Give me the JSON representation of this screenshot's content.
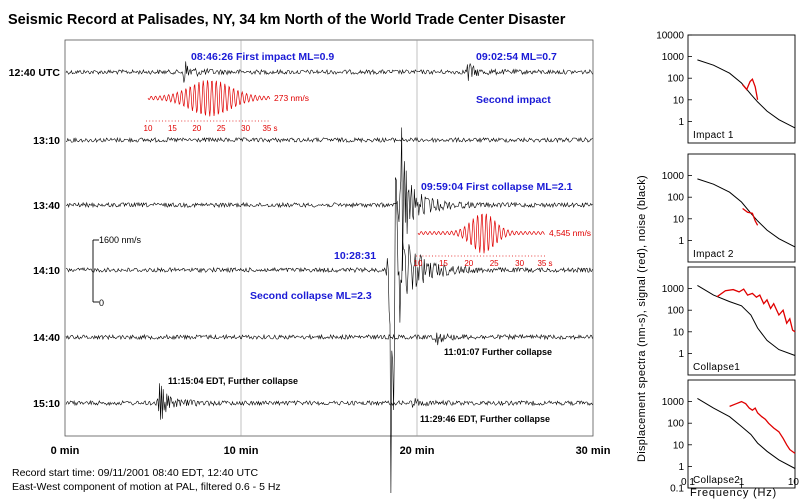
{
  "title": "Seismic Record at Palisades, NY, 34 km North of the World Trade Center Disaster",
  "colors": {
    "trace": "#000000",
    "event_label": "#1a1ad6",
    "signal": "#e00000",
    "noise": "#000000"
  },
  "footer": {
    "line1": "Record start time: 09/11/2001 08:40 EDT, 12:40 UTC",
    "line2": "East-West component of motion at PAL, filtered 0.6 - 5 Hz"
  },
  "chart_data": [
    {
      "type": "line",
      "name": "seismogram",
      "x_ticks": [
        "0 min",
        "10 min",
        "20 min",
        "30 min"
      ],
      "xlim": [
        0,
        30
      ],
      "rows": [
        "12:40 UTC",
        "13:10",
        "13:40",
        "14:10",
        "14:40",
        "15:10"
      ],
      "scale_bar": {
        "label": "1600 nm/s",
        "zero_label": "0"
      },
      "events": [
        {
          "row": 0,
          "minute": 6.8,
          "amp": 12,
          "label": "08:46:26 First impact ML=0.9",
          "color": "blue"
        },
        {
          "row": 0,
          "minute": 22.9,
          "amp": 9,
          "label": "09:02:54 ML=0.7",
          "color": "blue"
        },
        {
          "row": 0,
          "minute": 22.9,
          "amp": 0,
          "label": "Second impact",
          "color": "blue"
        },
        {
          "row": 2,
          "minute": 19.1,
          "amp": 90,
          "label": "09:59:04 First collapse ML=2.1",
          "color": "blue"
        },
        {
          "row": 3,
          "minute": 18.5,
          "amp": 210,
          "label": "10:28:31",
          "color": "blue"
        },
        {
          "row": 3,
          "minute": 18.5,
          "amp": 0,
          "label": "Second collapse ML=2.3",
          "color": "blue"
        },
        {
          "row": 4,
          "minute": 21.1,
          "amp": 7,
          "label": "11:01:07 Further collapse",
          "color": "black"
        },
        {
          "row": 5,
          "minute": 5.4,
          "amp": 20,
          "label": "11:15:04 EDT, Further collapse",
          "color": "black"
        },
        {
          "row": 5,
          "minute": 19.8,
          "amp": 4,
          "label": "11:29:46 EDT, Further collapse",
          "color": "black"
        }
      ],
      "insets": [
        {
          "peak_label": "273 nm/s",
          "x_ticks": [
            "10",
            "15",
            "20",
            "25",
            "30",
            "35 s"
          ]
        },
        {
          "peak_label": "4,545 nm/s",
          "x_ticks": [
            "10",
            "15",
            "20",
            "25",
            "30",
            "35 s"
          ]
        }
      ]
    },
    {
      "type": "line",
      "name": "spectra",
      "ylabel": "Displacement spectra (nm-s), signal (red), noise (black)",
      "xlabel": "Frequency (Hz)",
      "x_scale": "log",
      "y_scale": "log",
      "xlim": [
        0.1,
        10
      ],
      "ylim": [
        0.1,
        10000
      ],
      "x_ticks": [
        "0.1",
        "1",
        "10"
      ],
      "y_ticks": [
        "0.1",
        "1",
        "10",
        "100",
        "1000",
        "10000"
      ],
      "panels": [
        {
          "label": "Impact 1",
          "noise": {
            "x": [
              0.15,
              0.3,
              0.6,
              1.0,
              1.5,
              2,
              3,
              5,
              10
            ],
            "y": [
              700,
              400,
              170,
              60,
              18,
              8,
              3,
              1.2,
              0.5
            ]
          },
          "signal": {
            "x": [
              1.05,
              1.25,
              1.45,
              1.6,
              1.8,
              2.0
            ],
            "y": [
              50,
              30,
              70,
              90,
              40,
              10
            ]
          }
        },
        {
          "label": "Impact 2",
          "noise": {
            "x": [
              0.15,
              0.3,
              0.6,
              1.0,
              1.5,
              2,
              3,
              5,
              10
            ],
            "y": [
              700,
              400,
              170,
              60,
              18,
              8,
              3,
              1.2,
              0.5
            ]
          },
          "signal": {
            "x": [
              1.05,
              1.3,
              1.6,
              1.8,
              2.0
            ],
            "y": [
              30,
              20,
              18,
              8,
              5
            ]
          }
        },
        {
          "label": "Collapse1",
          "noise": {
            "x": [
              0.15,
              0.3,
              0.6,
              1.0,
              1.5,
              2,
              3,
              5,
              10
            ],
            "y": [
              1400,
              500,
              250,
              160,
              60,
              15,
              4,
              1.5,
              0.8
            ]
          },
          "signal": {
            "x": [
              0.35,
              0.5,
              0.7,
              0.9,
              1.1,
              1.3,
              1.6,
              1.9,
              2.2,
              2.6,
              3.0,
              3.5,
              4.0,
              5.0,
              6.0,
              7.0,
              8.0,
              9.0,
              10.0
            ],
            "y": [
              420,
              800,
              900,
              700,
              950,
              500,
              600,
              400,
              500,
              200,
              300,
              120,
              200,
              60,
              100,
              25,
              40,
              12,
              10
            ]
          }
        },
        {
          "label": "Collapse2",
          "noise": {
            "x": [
              0.15,
              0.3,
              0.6,
              1.0,
              1.5,
              2,
              3,
              5,
              10
            ],
            "y": [
              1400,
              500,
              200,
              70,
              30,
              12,
              5,
              2,
              0.8
            ]
          },
          "signal": {
            "x": [
              0.6,
              0.8,
              1.0,
              1.2,
              1.4,
              1.6,
              1.8,
              2.0,
              2.4,
              2.8,
              3.2,
              4.0,
              5.0,
              6.0,
              7.0,
              8.0,
              10.0
            ],
            "y": [
              600,
              800,
              1000,
              800,
              500,
              400,
              500,
              300,
              200,
              150,
              100,
              60,
              40,
              20,
              10,
              6,
              4
            ]
          }
        }
      ]
    }
  ]
}
